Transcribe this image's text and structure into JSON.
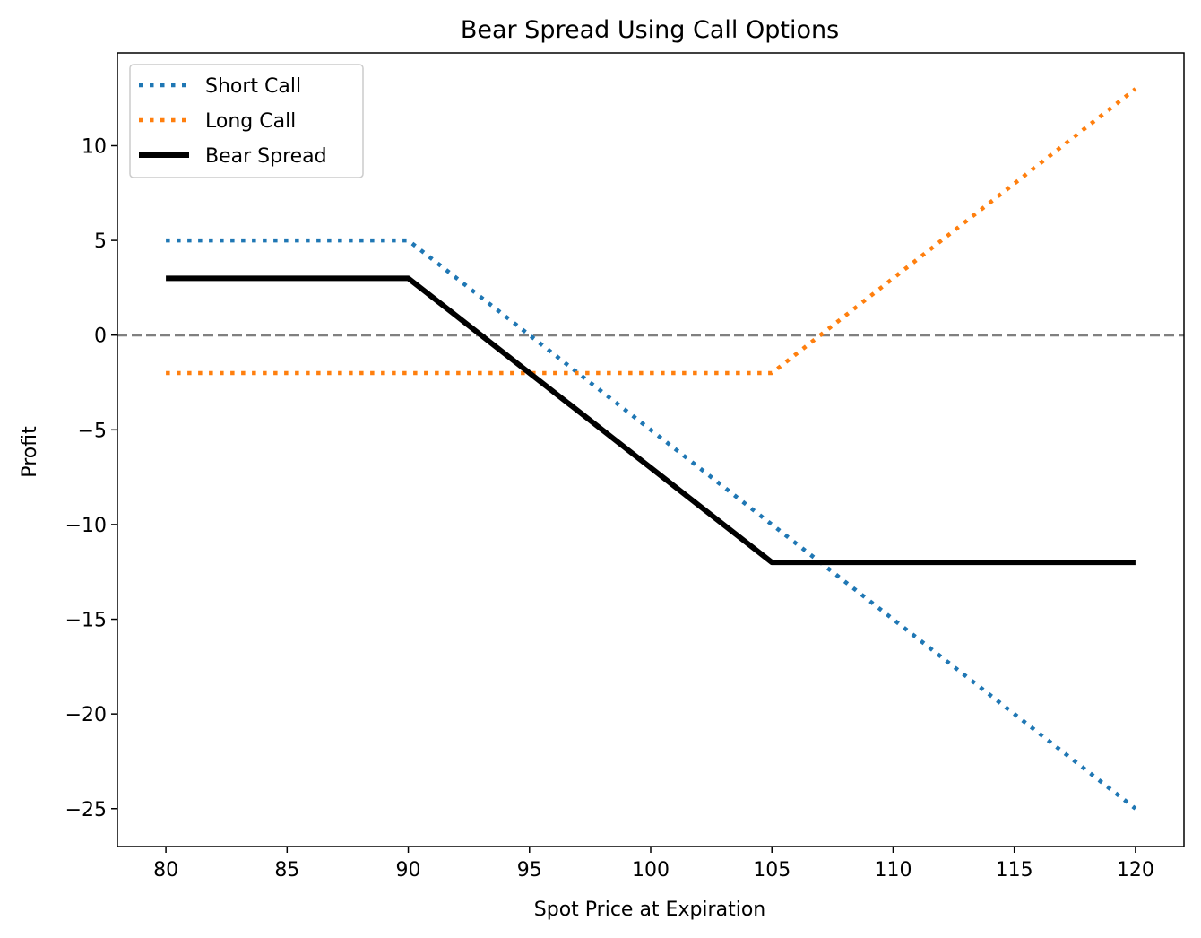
{
  "chart_data": {
    "type": "line",
    "title": "Bear Spread Using Call Options",
    "xlabel": "Spot Price at Expiration",
    "ylabel": "Profit",
    "xlim": [
      78,
      122
    ],
    "ylim": [
      -27,
      14.9
    ],
    "xticks": [
      80,
      85,
      90,
      95,
      100,
      105,
      110,
      115,
      120
    ],
    "yticks": [
      -25,
      -20,
      -15,
      -10,
      -5,
      0,
      5,
      10
    ],
    "grid": false,
    "legend_position": "upper-left",
    "reference_line": {
      "y": 0,
      "style": "dashed",
      "color": "#808080"
    },
    "series": [
      {
        "name": "Short Call",
        "style": "dotted",
        "color": "#1f77b4",
        "points": [
          [
            80,
            5
          ],
          [
            90,
            5
          ],
          [
            120,
            -25
          ]
        ]
      },
      {
        "name": "Long Call",
        "style": "dotted",
        "color": "#ff7f0e",
        "points": [
          [
            80,
            -2
          ],
          [
            105,
            -2
          ],
          [
            120,
            13
          ]
        ]
      },
      {
        "name": "Bear Spread",
        "style": "solid",
        "color": "#000000",
        "points": [
          [
            80,
            3
          ],
          [
            90,
            3
          ],
          [
            105,
            -12
          ],
          [
            120,
            -12
          ]
        ]
      }
    ]
  }
}
